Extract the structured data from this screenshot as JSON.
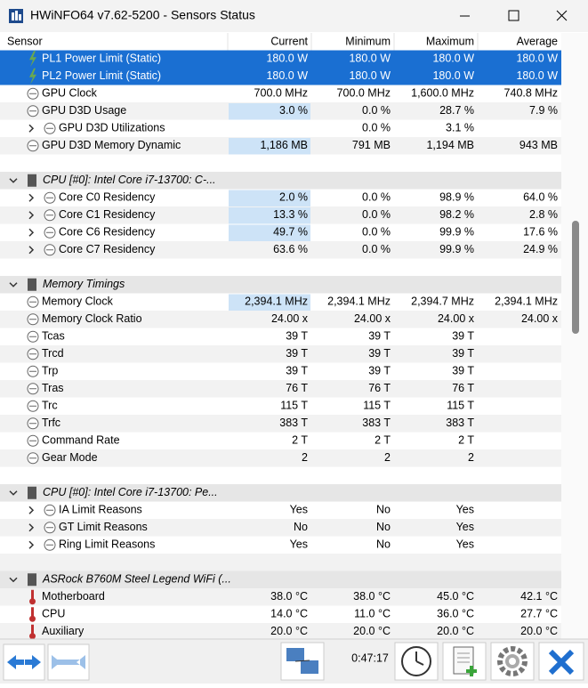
{
  "window": {
    "title": "HWiNFO64 v7.62-5200 - Sensors Status"
  },
  "table": {
    "columns": [
      "Sensor",
      "Current",
      "Minimum",
      "Maximum",
      "Average"
    ],
    "rows": [
      {
        "sensor": "PL1 Power Limit (Static)",
        "current": "180.0 W",
        "minimum": "180.0 W",
        "maximum": "180.0 W",
        "average": "180.0 W"
      },
      {
        "sensor": "PL2 Power Limit (Static)",
        "current": "180.0 W",
        "minimum": "180.0 W",
        "maximum": "180.0 W",
        "average": "180.0 W"
      },
      {
        "sensor": "GPU Clock",
        "current": "700.0 MHz",
        "minimum": "700.0 MHz",
        "maximum": "1,600.0 MHz",
        "average": "740.8 MHz"
      },
      {
        "sensor": "GPU D3D Usage",
        "current": "3.0 %",
        "minimum": "0.0 %",
        "maximum": "28.7 %",
        "average": "7.9 %"
      },
      {
        "sensor": "GPU D3D Utilizations",
        "minimum": "0.0 %",
        "maximum": "3.1 %"
      },
      {
        "sensor": "GPU D3D Memory Dynamic",
        "current": "1,186 MB",
        "minimum": "791 MB",
        "maximum": "1,194 MB",
        "average": "943 MB"
      },
      {
        "sensor": "CPU [#0]: Intel Core i7-13700: C-..."
      },
      {
        "sensor": "Core C0 Residency",
        "current": "2.0 %",
        "minimum": "0.0 %",
        "maximum": "98.9 %",
        "average": "64.0 %"
      },
      {
        "sensor": "Core C1 Residency",
        "current": "13.3 %",
        "minimum": "0.0 %",
        "maximum": "98.2 %",
        "average": "2.8 %"
      },
      {
        "sensor": "Core C6 Residency",
        "current": "49.7 %",
        "minimum": "0.0 %",
        "maximum": "99.9 %",
        "average": "17.6 %"
      },
      {
        "sensor": "Core C7 Residency",
        "current": "63.6 %",
        "minimum": "0.0 %",
        "maximum": "99.9 %",
        "average": "24.9 %"
      },
      {
        "sensor": "Memory Timings"
      },
      {
        "sensor": "Memory Clock",
        "current": "2,394.1 MHz",
        "minimum": "2,394.1 MHz",
        "maximum": "2,394.7 MHz",
        "average": "2,394.1 MHz"
      },
      {
        "sensor": "Memory Clock Ratio",
        "current": "24.00 x",
        "minimum": "24.00 x",
        "maximum": "24.00 x",
        "average": "24.00 x"
      },
      {
        "sensor": "Tcas",
        "current": "39 T",
        "minimum": "39 T",
        "maximum": "39 T"
      },
      {
        "sensor": "Trcd",
        "current": "39 T",
        "minimum": "39 T",
        "maximum": "39 T"
      },
      {
        "sensor": "Trp",
        "current": "39 T",
        "minimum": "39 T",
        "maximum": "39 T"
      },
      {
        "sensor": "Tras",
        "current": "76 T",
        "minimum": "76 T",
        "maximum": "76 T"
      },
      {
        "sensor": "Trc",
        "current": "115 T",
        "minimum": "115 T",
        "maximum": "115 T"
      },
      {
        "sensor": "Trfc",
        "current": "383 T",
        "minimum": "383 T",
        "maximum": "383 T"
      },
      {
        "sensor": "Command Rate",
        "current": "2 T",
        "minimum": "2 T",
        "maximum": "2 T"
      },
      {
        "sensor": "Gear Mode",
        "current": "2",
        "minimum": "2",
        "maximum": "2"
      },
      {
        "sensor": "CPU [#0]: Intel Core i7-13700: Pe..."
      },
      {
        "sensor": "IA Limit Reasons",
        "current": "Yes",
        "minimum": "No",
        "maximum": "Yes"
      },
      {
        "sensor": "GT Limit Reasons",
        "current": "No",
        "minimum": "No",
        "maximum": "Yes"
      },
      {
        "sensor": "Ring Limit Reasons",
        "current": "Yes",
        "minimum": "No",
        "maximum": "Yes"
      },
      {
        "sensor": "ASRock B760M Steel Legend WiFi (..."
      },
      {
        "sensor": "Motherboard",
        "current": "38.0 °C",
        "minimum": "38.0 °C",
        "maximum": "45.0 °C",
        "average": "42.1 °C"
      },
      {
        "sensor": "CPU",
        "current": "14.0 °C",
        "minimum": "11.0 °C",
        "maximum": "36.0 °C",
        "average": "27.7 °C"
      },
      {
        "sensor": "Auxiliary",
        "current": "20.0 °C",
        "minimum": "20.0 °C",
        "maximum": "20.0 °C",
        "average": "20.0 °C"
      }
    ]
  },
  "footer": {
    "time": "0:47:17"
  }
}
